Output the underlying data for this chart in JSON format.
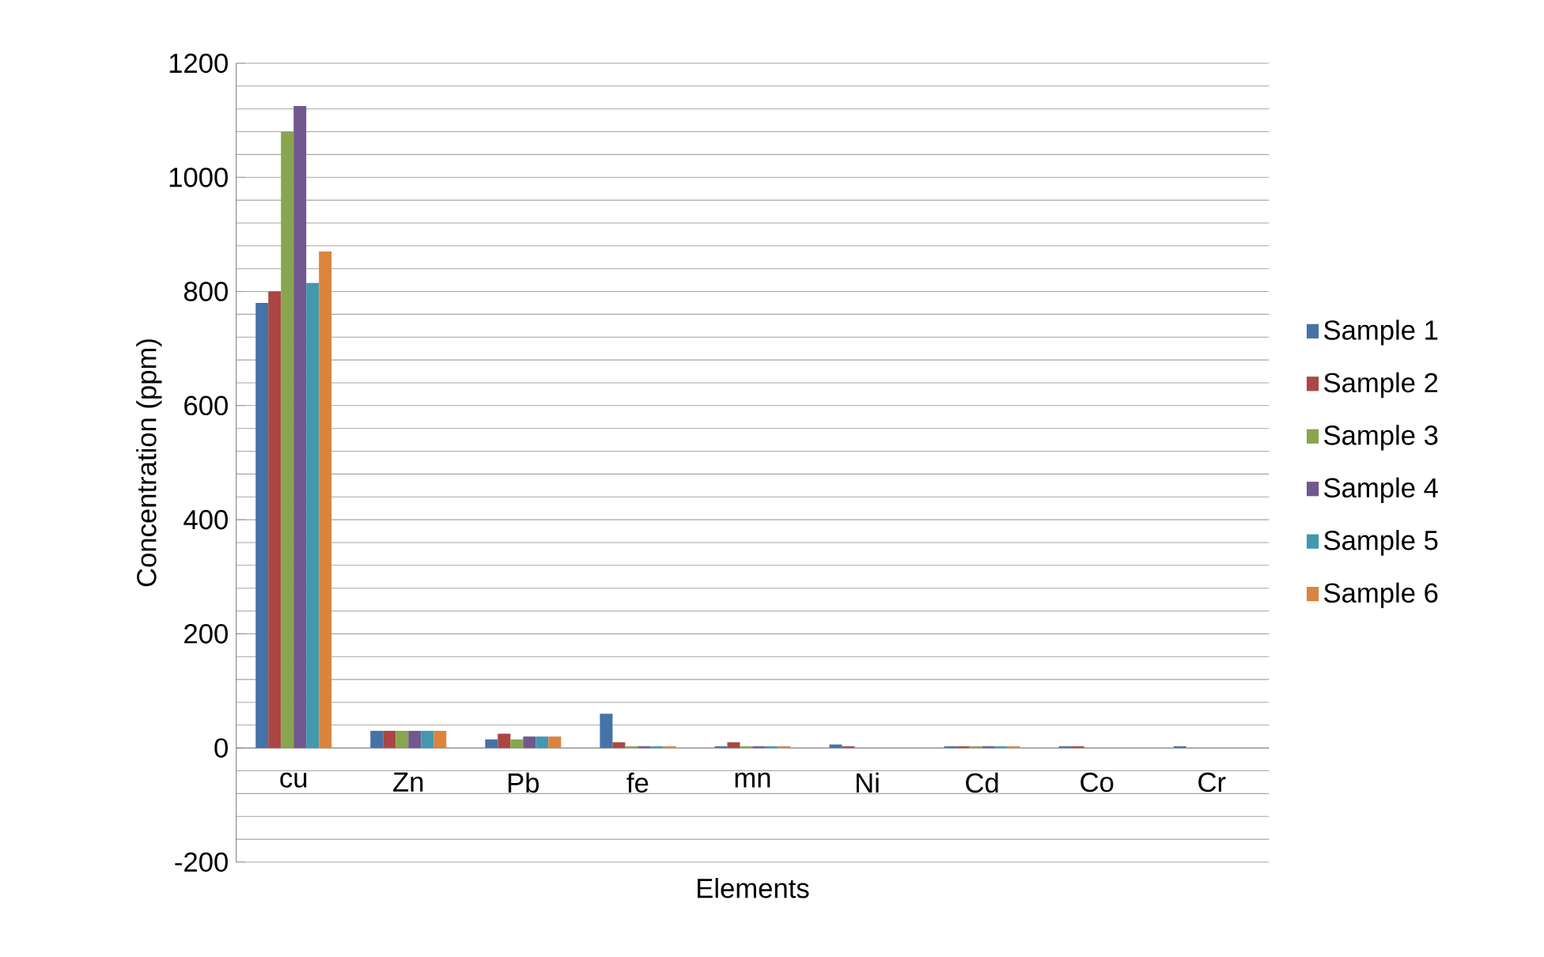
{
  "chart_data": {
    "type": "bar",
    "xlabel": "Elements",
    "ylabel": "Concentration (ppm)",
    "categories": [
      "cu",
      "Zn",
      "Pb",
      "fe",
      "mn",
      "Ni",
      "Cd",
      "Co",
      "Cr"
    ],
    "series": [
      {
        "name": "Sample 1",
        "color": "#4572a7",
        "values": [
          780,
          30,
          15,
          60,
          3,
          6,
          3,
          3,
          3
        ]
      },
      {
        "name": "Sample 2",
        "color": "#aa4643",
        "values": [
          800,
          30,
          25,
          10,
          10,
          3,
          3,
          3,
          0
        ]
      },
      {
        "name": "Sample 3",
        "color": "#89a54e",
        "values": [
          1080,
          30,
          15,
          3,
          3,
          0,
          3,
          0,
          0
        ]
      },
      {
        "name": "Sample 4",
        "color": "#71588f",
        "values": [
          1125,
          30,
          20,
          3,
          3,
          0,
          3,
          0,
          0
        ]
      },
      {
        "name": "Sample 5",
        "color": "#4198af",
        "values": [
          815,
          30,
          20,
          3,
          3,
          0,
          3,
          0,
          0
        ]
      },
      {
        "name": "Sample 6",
        "color": "#db843d",
        "values": [
          870,
          30,
          20,
          3,
          3,
          0,
          3,
          0,
          0
        ]
      }
    ],
    "ylim": [
      -200,
      1200
    ],
    "yticks": [
      -200,
      0,
      200,
      400,
      600,
      800,
      1000,
      1200
    ],
    "grid": "y",
    "legend": "right"
  }
}
